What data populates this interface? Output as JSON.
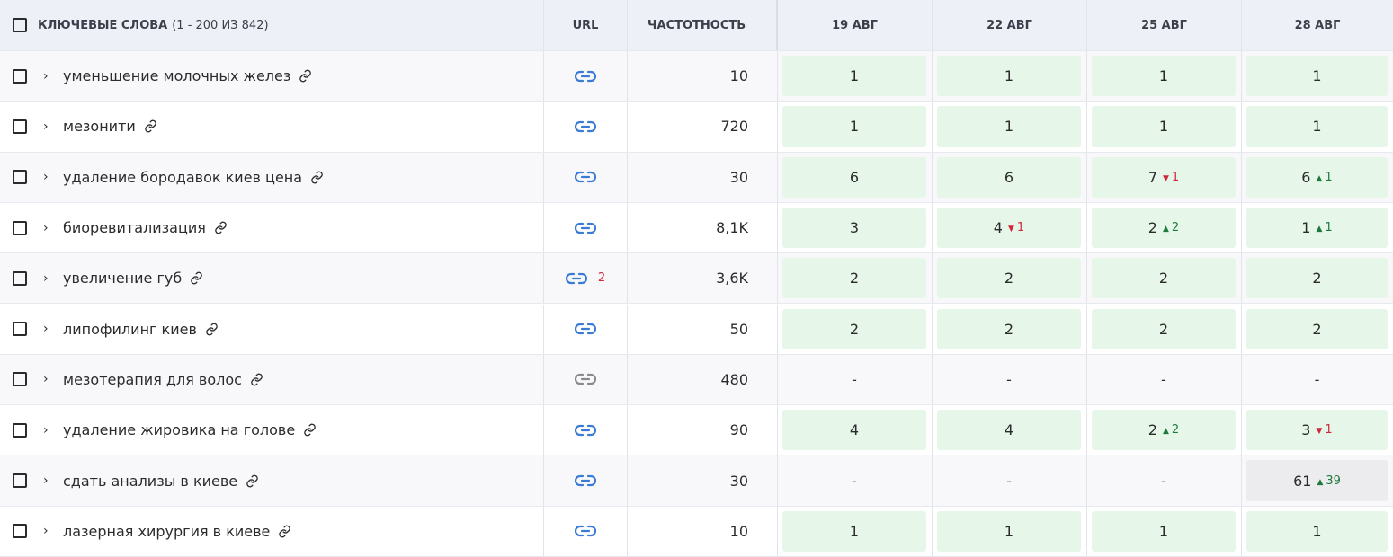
{
  "header": {
    "keywords_label": "КЛЮЧЕВЫЕ СЛОВА",
    "keywords_range": "(1 - 200 ИЗ 842)",
    "url": "URL",
    "frequency": "ЧАСТОТНОСТЬ",
    "dates": [
      "19 АВГ",
      "22 АВГ",
      "25 АВГ",
      "28 АВГ"
    ]
  },
  "rows": [
    {
      "keyword": "уменьшение молочных желез",
      "url_color": "#3a7bd5",
      "frequency": "10",
      "positions": [
        {
          "value": 1
        },
        {
          "value": 1
        },
        {
          "value": 1
        },
        {
          "value": 1
        }
      ]
    },
    {
      "keyword": "мезонити",
      "url_color": "#3a7bd5",
      "frequency": "720",
      "positions": [
        {
          "value": 1
        },
        {
          "value": 1
        },
        {
          "value": 1
        },
        {
          "value": 1
        }
      ]
    },
    {
      "keyword": "удаление бородавок киев цена",
      "url_color": "#3a7bd5",
      "frequency": "30",
      "positions": [
        {
          "value": 6
        },
        {
          "value": 6
        },
        {
          "value": 7,
          "change": 1,
          "direction": "down"
        },
        {
          "value": 6,
          "change": 1,
          "direction": "up"
        }
      ]
    },
    {
      "keyword": "биоревитализация",
      "url_color": "#3a7bd5",
      "frequency": "8,1K",
      "positions": [
        {
          "value": 3
        },
        {
          "value": 4,
          "change": 1,
          "direction": "down"
        },
        {
          "value": 2,
          "change": 2,
          "direction": "up"
        },
        {
          "value": 1,
          "change": 1,
          "direction": "up"
        }
      ]
    },
    {
      "keyword": "увеличение губ",
      "url_color": "#3a7bd5",
      "url_count": 2,
      "frequency": "3,6K",
      "positions": [
        {
          "value": 2
        },
        {
          "value": 2
        },
        {
          "value": 2
        },
        {
          "value": 2
        }
      ]
    },
    {
      "keyword": "липофилинг киев",
      "url_color": "#3a7bd5",
      "frequency": "50",
      "positions": [
        {
          "value": 2
        },
        {
          "value": 2
        },
        {
          "value": 2
        },
        {
          "value": 2
        }
      ]
    },
    {
      "keyword": "мезотерапия для волос",
      "url_color": "#8a8a8a",
      "frequency": "480",
      "positions": [
        {
          "value": "-"
        },
        {
          "value": "-"
        },
        {
          "value": "-"
        },
        {
          "value": "-"
        }
      ]
    },
    {
      "keyword": "удаление жировика на голове",
      "url_color": "#3a7bd5",
      "frequency": "90",
      "positions": [
        {
          "value": 4
        },
        {
          "value": 4
        },
        {
          "value": 2,
          "change": 2,
          "direction": "up"
        },
        {
          "value": 3,
          "change": 1,
          "direction": "down"
        }
      ]
    },
    {
      "keyword": "сдать анализы в киеве",
      "url_color": "#3a7bd5",
      "frequency": "30",
      "positions": [
        {
          "value": "-"
        },
        {
          "value": "-"
        },
        {
          "value": "-"
        },
        {
          "value": 61,
          "change": 39,
          "direction": "up"
        }
      ]
    },
    {
      "keyword": "лазерная хирургия в киеве",
      "url_color": "#3a7bd5",
      "frequency": "10",
      "positions": [
        {
          "value": 1
        },
        {
          "value": 1
        },
        {
          "value": 1
        },
        {
          "value": 1
        }
      ]
    }
  ]
}
